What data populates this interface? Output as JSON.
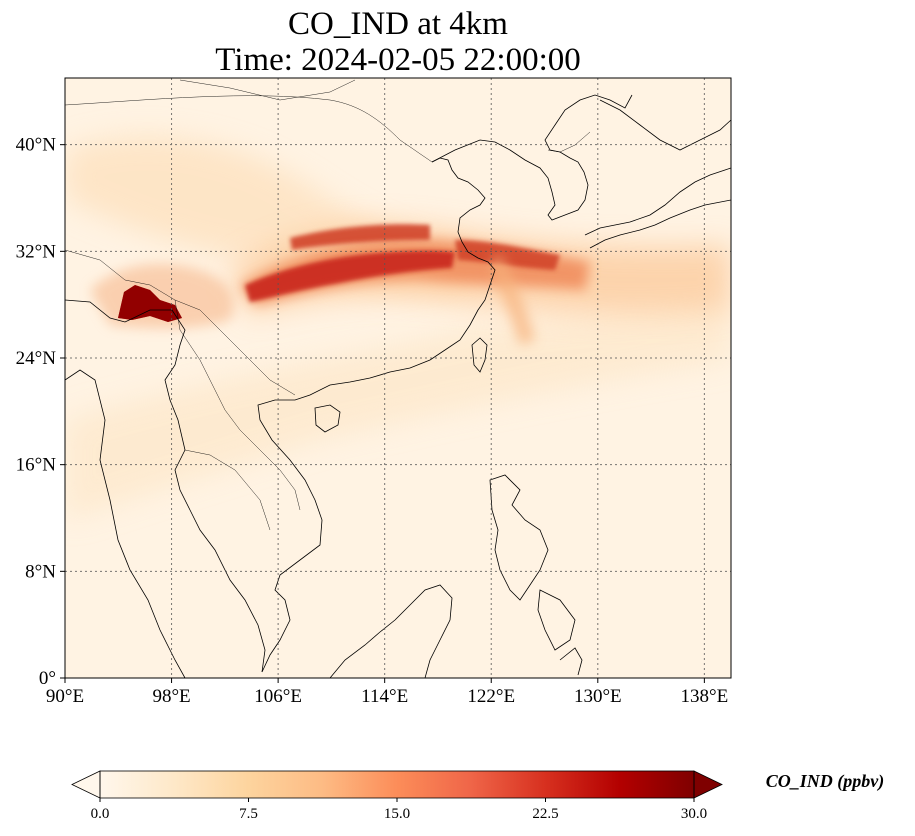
{
  "title": {
    "line1": "CO_IND at 4km",
    "line2": "Time: 2024-02-05 22:00:00"
  },
  "map": {
    "lon_range": [
      90,
      140
    ],
    "lat_range": [
      0,
      45
    ],
    "gridlines": "dotted",
    "x_ticks": [
      {
        "value": 90,
        "label": "90°E"
      },
      {
        "value": 98,
        "label": "98°E"
      },
      {
        "value": 106,
        "label": "106°E"
      },
      {
        "value": 114,
        "label": "114°E"
      },
      {
        "value": 122,
        "label": "122°E"
      },
      {
        "value": 130,
        "label": "130°E"
      },
      {
        "value": 138,
        "label": "138°E"
      }
    ],
    "y_ticks": [
      {
        "value": 0,
        "label": "0°"
      },
      {
        "value": 8,
        "label": "8°N"
      },
      {
        "value": 16,
        "label": "16°N"
      },
      {
        "value": 24,
        "label": "24°N"
      },
      {
        "value": 32,
        "label": "32°N"
      },
      {
        "value": 40,
        "label": "40°N"
      }
    ]
  },
  "colorbar": {
    "label": "CO_IND (ppbv)",
    "min": 0,
    "max": 30,
    "extend": "both",
    "colormap": "OrRd",
    "stops": [
      "#fff7ec",
      "#fee8c8",
      "#fdd49e",
      "#fdbb84",
      "#fc8d59",
      "#ef6548",
      "#d7301f",
      "#b30000",
      "#7f0000"
    ],
    "ticks": [
      {
        "value": 0,
        "label": "0.0"
      },
      {
        "value": 7.5,
        "label": "7.5"
      },
      {
        "value": 15,
        "label": "15.0"
      },
      {
        "value": 22.5,
        "label": "22.5"
      },
      {
        "value": 30,
        "label": "30.0"
      }
    ]
  }
}
